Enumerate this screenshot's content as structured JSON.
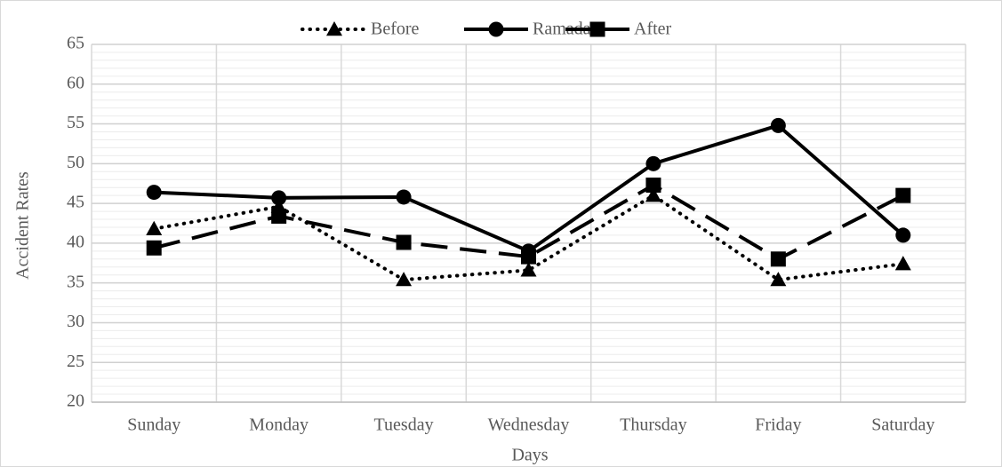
{
  "chart_data": {
    "type": "line",
    "x_label": "Days",
    "y_label": "Accident Rates",
    "categories": [
      "Sunday",
      "Monday",
      "Tuesday",
      "Wednesday",
      "Thursday",
      "Friday",
      "Saturday"
    ],
    "series": [
      {
        "name": "Before",
        "color": "#000000",
        "dash": "dotted",
        "marker": "triangle",
        "values": [
          41.8,
          44.6,
          35.4,
          36.6,
          46,
          35.4,
          37.4
        ]
      },
      {
        "name": "Ramadan",
        "color": "#000000",
        "dash": "solid",
        "marker": "circle",
        "values": [
          46.4,
          45.7,
          45.8,
          39,
          50,
          54.8,
          41
        ]
      },
      {
        "name": "After",
        "color": "#000000",
        "dash": "long-dash",
        "marker": "square",
        "values": [
          39.4,
          43.4,
          40.1,
          38.3,
          47.3,
          38,
          46
        ]
      }
    ],
    "ylim": [
      20,
      65
    ],
    "yticks": [
      20,
      25,
      30,
      35,
      40,
      45,
      50,
      55,
      60,
      65
    ],
    "minor_grid_step": 1,
    "grid": true,
    "legend": "top"
  }
}
